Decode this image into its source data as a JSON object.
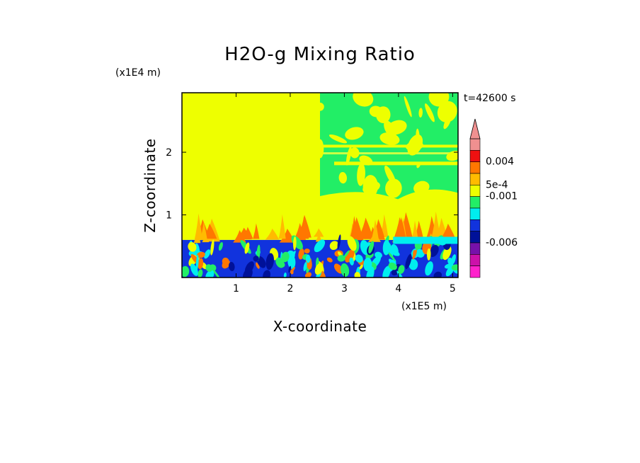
{
  "chart_data": {
    "type": "heatmap",
    "title": "H2O-g Mixing Ratio",
    "xlabel": "X-coordinate",
    "ylabel": "Z-coordinate",
    "x_units": "(x1E5 m)",
    "y_units": "(x1E4 m)",
    "time_label": "t=42600 s",
    "xlim": [
      0,
      5.1
    ],
    "ylim": [
      0,
      2.95
    ],
    "x_ticks": [
      "1",
      "2",
      "3",
      "4",
      "5"
    ],
    "y_ticks": [
      "1",
      "2"
    ],
    "regions": [
      {
        "name": "upper-left",
        "x": [
          0,
          2.55
        ],
        "z": [
          0.6,
          2.95
        ],
        "color": "#eeff00"
      },
      {
        "name": "upper-right",
        "x": [
          2.55,
          5.1
        ],
        "z": [
          0.6,
          2.95
        ],
        "color": "#22ee66"
      },
      {
        "name": "lower",
        "x": [
          0,
          5.1
        ],
        "z": [
          0,
          0.6
        ],
        "color": "#1133dd"
      }
    ],
    "colorbar": {
      "colors": [
        "#f09090",
        "#ee1111",
        "#ff7700",
        "#ffbb00",
        "#eeff00",
        "#22ee66",
        "#00eeee",
        "#1133dd",
        "#001199",
        "#7711aa",
        "#cc11aa",
        "#ff22cc"
      ],
      "labels": [
        "0.004",
        "5e-4",
        "-0.001",
        "-0.006"
      ],
      "extend": "max"
    }
  }
}
